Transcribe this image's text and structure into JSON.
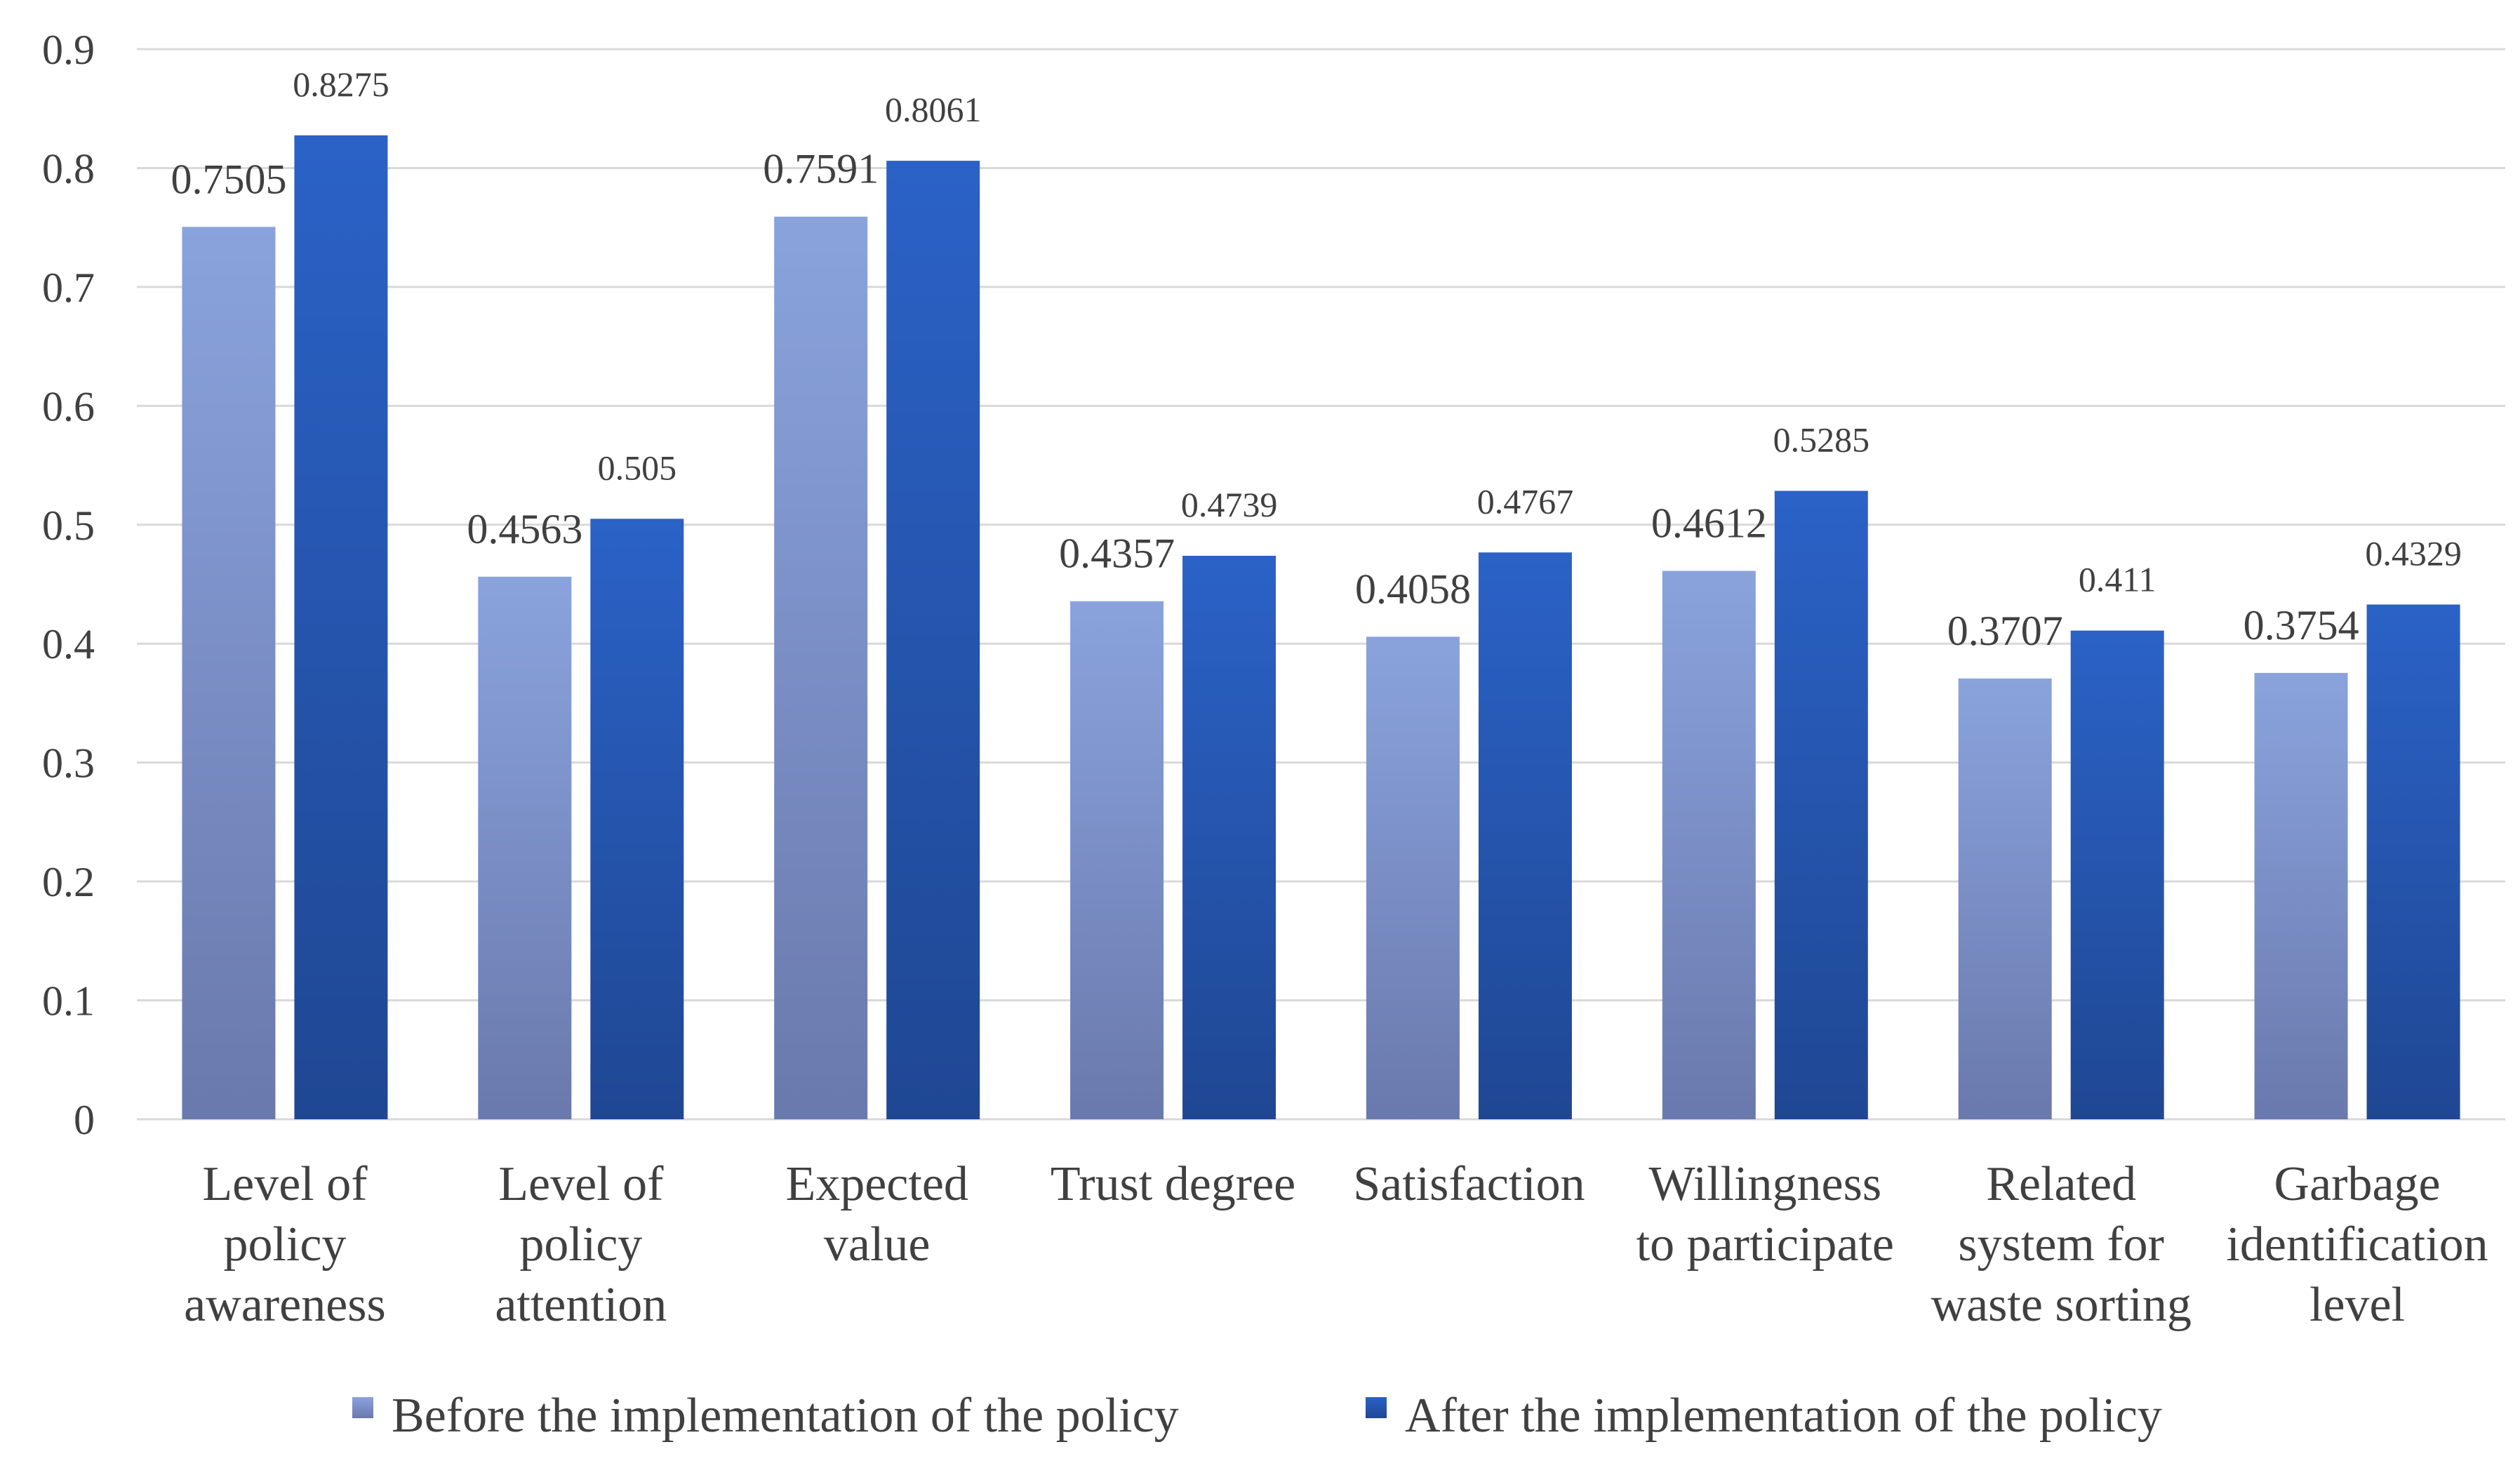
{
  "chart_data": {
    "type": "bar",
    "title": "",
    "xlabel": "",
    "ylabel": "",
    "ylim": [
      0,
      0.9
    ],
    "yticks": [
      "0",
      "0.1",
      "0.2",
      "0.3",
      "0.4",
      "0.5",
      "0.6",
      "0.7",
      "0.8",
      "0.9"
    ],
    "grid": true,
    "legend_position": "bottom",
    "categories": [
      [
        "Level of",
        "policy",
        "awareness"
      ],
      [
        "Level of",
        "policy",
        "attention"
      ],
      [
        "Expected",
        "value"
      ],
      [
        "Trust degree"
      ],
      [
        "Satisfaction"
      ],
      [
        "Willingness",
        "to participate"
      ],
      [
        "Related",
        "system for",
        "waste sorting"
      ],
      [
        "Garbage",
        "identification",
        "level"
      ]
    ],
    "series": [
      {
        "name": "Before the implementation of the policy",
        "values": [
          0.7505,
          0.4563,
          0.7591,
          0.4357,
          0.4058,
          0.4612,
          0.3707,
          0.3754
        ],
        "labels": [
          "0.7505",
          "0.4563",
          "0.7591",
          "0.4357",
          "0.4058",
          "0.4612",
          "0.3707",
          "0.3754"
        ],
        "color_top": "#8aa3dd",
        "color_bottom": "#6a79ad"
      },
      {
        "name": "After the implementation of the policy",
        "values": [
          0.8275,
          0.505,
          0.8061,
          0.4739,
          0.4767,
          0.5285,
          0.411,
          0.4329
        ],
        "labels": [
          "0.8275",
          "0.505",
          "0.8061",
          "0.4739",
          "0.4767",
          "0.5285",
          "0.411",
          "0.4329"
        ],
        "color_top": "#2b62c7",
        "color_bottom": "#1f4793"
      }
    ]
  }
}
